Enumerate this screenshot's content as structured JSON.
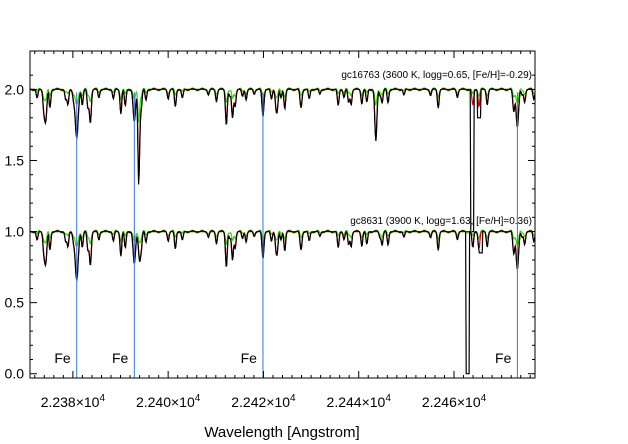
{
  "chart_data": {
    "type": "line",
    "title": "",
    "xlabel": "Wavelength [Angstrom]",
    "ylabel": "",
    "xlim": [
      22371,
      22477
    ],
    "ylim": [
      -0.03,
      2.27
    ],
    "x_ticks": [
      {
        "value": 22380,
        "mantissa": "2.238",
        "exponent": "4"
      },
      {
        "value": 22400,
        "mantissa": "2.240",
        "exponent": "4"
      },
      {
        "value": 22420,
        "mantissa": "2.242",
        "exponent": "4"
      },
      {
        "value": 22440,
        "mantissa": "2.244",
        "exponent": "4"
      },
      {
        "value": 22460,
        "mantissa": "2.246",
        "exponent": "4"
      }
    ],
    "y_ticks": [
      "0.0",
      "0.5",
      "1.0",
      "1.5",
      "2.0"
    ],
    "y_tick_values": [
      0.0,
      0.5,
      1.0,
      1.5,
      2.0
    ],
    "grid": false,
    "panels": [
      {
        "label": "gc16763  (3600 K, logg=0.65, [Fe/H]=-0.29)",
        "offset": 1.0
      },
      {
        "label": "gc8631  (3900 K, logg=1.63, [Fe/H]=0.36)",
        "offset": 0.0
      }
    ],
    "line_markers": [
      {
        "wavelength": 22380.8,
        "label": "Fe"
      },
      {
        "wavelength": 22392.9,
        "label": "Fe"
      },
      {
        "wavelength": 22419.9,
        "label": "Fe"
      },
      {
        "wavelength": 22473.3,
        "label": "Fe"
      }
    ],
    "series": [
      {
        "color": "#000000"
      },
      {
        "color": "#dd0000"
      },
      {
        "color": "#33dd00"
      }
    ],
    "marker_color": "#3377dd"
  }
}
